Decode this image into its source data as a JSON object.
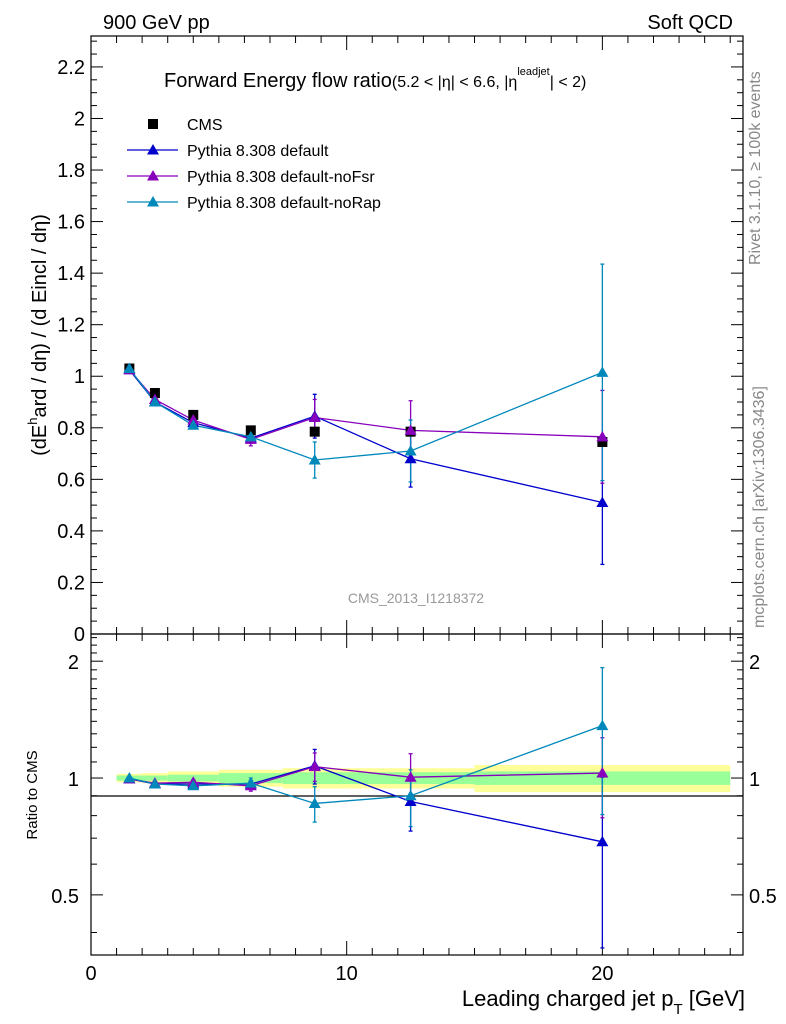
{
  "header": {
    "left": "900 GeV pp",
    "right": "Soft QCD"
  },
  "side_text": {
    "rivet": "Rivet 3.1.10, ≥ 100k events",
    "mcplots": "mcplots.cern.ch [arXiv:1306.3436]"
  },
  "watermark": "CMS_2013_I1218372",
  "colors": {
    "cms": "#000000",
    "default": "#0000cc",
    "noFsr": "#8800bb",
    "noRap": "#0088bb",
    "band_yellow": "#ffff99",
    "band_green": "#99ff99"
  },
  "chart_data": [
    {
      "type": "scatter",
      "title": "Forward Energy flow ratio",
      "title_cuts": {
        "a": "(5.2 < |η| < 6.6, |η",
        "sup": "leadjet",
        "b": "| < 2)"
      },
      "ylabel": {
        "a": "(dE",
        "sup": "h",
        "b": "ard / dη) / (d Eincl / dη)"
      },
      "xlim": [
        0,
        25.5
      ],
      "ylim": [
        0,
        2.32
      ],
      "yticks": [
        0,
        0.2,
        0.4,
        0.6,
        0.8,
        1,
        1.2,
        1.4,
        1.6,
        1.8,
        2,
        2.2
      ],
      "x": [
        1.5,
        2.5,
        4,
        6.25,
        8.75,
        12.5,
        20
      ],
      "series": [
        {
          "name": "CMS",
          "key": "cms",
          "marker": "square",
          "y": [
            1.03,
            0.935,
            0.85,
            0.79,
            0.785,
            0.785,
            0.745
          ]
        },
        {
          "name": "Pythia 8.308 default",
          "key": "default",
          "marker": "triangle",
          "y": [
            1.025,
            0.9,
            0.82,
            0.76,
            0.845,
            0.68,
            0.51
          ],
          "err": [
            0.01,
            0.01,
            0.015,
            0.02,
            0.085,
            0.11,
            0.24
          ]
        },
        {
          "name": "Pythia 8.308 default-noFsr",
          "key": "noFsr",
          "marker": "triangle",
          "y": [
            1.025,
            0.91,
            0.83,
            0.755,
            0.84,
            0.79,
            0.765
          ],
          "err": [
            0.01,
            0.01,
            0.015,
            0.025,
            0.07,
            0.115,
            0.18
          ]
        },
        {
          "name": "Pythia 8.308 default-noRap",
          "key": "noRap",
          "marker": "triangle",
          "y": [
            1.03,
            0.9,
            0.81,
            0.765,
            0.675,
            0.71,
            1.015
          ],
          "err": [
            0.01,
            0.01,
            0.01,
            0.02,
            0.07,
            0.12,
            0.42
          ]
        }
      ]
    },
    {
      "type": "scatter",
      "ylabel": "Ratio to CMS",
      "xlabel": {
        "a": "Leading charged jet p",
        "sub": "T",
        "b": " [GeV]"
      },
      "xlim": [
        0,
        25.5
      ],
      "xticks": [
        0,
        10,
        20
      ],
      "ylim": [
        0.35,
        2.35
      ],
      "ylog": true,
      "yticks": [
        0.5,
        1,
        2
      ],
      "bands": [
        {
          "x0": 1,
          "x1": 2,
          "yellow": [
            0.975,
            1.025
          ],
          "green": [
            0.985,
            1.015
          ]
        },
        {
          "x0": 2,
          "x1": 3,
          "yellow": [
            0.97,
            1.03
          ],
          "green": [
            0.985,
            1.015
          ]
        },
        {
          "x0": 3,
          "x1": 5,
          "yellow": [
            0.96,
            1.04
          ],
          "green": [
            0.98,
            1.02
          ]
        },
        {
          "x0": 5,
          "x1": 7.5,
          "yellow": [
            0.95,
            1.05
          ],
          "green": [
            0.97,
            1.03
          ]
        },
        {
          "x0": 7.5,
          "x1": 10,
          "yellow": [
            0.94,
            1.06
          ],
          "green": [
            0.965,
            1.035
          ]
        },
        {
          "x0": 10,
          "x1": 15,
          "yellow": [
            0.94,
            1.06
          ],
          "green": [
            0.965,
            1.035
          ]
        },
        {
          "x0": 15,
          "x1": 25,
          "yellow": [
            0.92,
            1.08
          ],
          "green": [
            0.96,
            1.04
          ]
        }
      ],
      "x": [
        1.5,
        2.5,
        4,
        6.25,
        8.75,
        12.5,
        20
      ],
      "series": [
        {
          "name": "Pythia 8.308 default",
          "key": "default",
          "marker": "triangle",
          "y": [
            0.995,
            0.965,
            0.965,
            0.965,
            1.075,
            0.87,
            0.685
          ],
          "err_lo": [
            0.01,
            0.01,
            0.015,
            0.02,
            0.11,
            0.14,
            0.32
          ],
          "err_hi": [
            0.01,
            0.01,
            0.015,
            0.02,
            0.11,
            0.14,
            0.32
          ]
        },
        {
          "name": "Pythia 8.308 default-noFsr",
          "key": "noFsr",
          "marker": "triangle",
          "y": [
            0.995,
            0.97,
            0.975,
            0.955,
            1.07,
            1.005,
            1.03
          ],
          "err_lo": [
            0.01,
            0.01,
            0.015,
            0.03,
            0.09,
            0.15,
            0.24
          ],
          "err_hi": [
            0.01,
            0.01,
            0.015,
            0.03,
            0.09,
            0.15,
            0.24
          ]
        },
        {
          "name": "Pythia 8.308 default-noRap",
          "key": "noRap",
          "marker": "triangle",
          "y": [
            1.0,
            0.965,
            0.955,
            0.97,
            0.86,
            0.9,
            1.365
          ],
          "err_lo": [
            0.01,
            0.01,
            0.01,
            0.03,
            0.09,
            0.15,
            0.56
          ],
          "err_hi": [
            0.01,
            0.01,
            0.01,
            0.03,
            0.09,
            0.15,
            0.56
          ]
        }
      ]
    }
  ]
}
